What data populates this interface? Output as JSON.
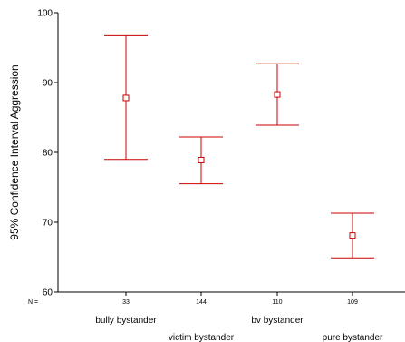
{
  "chart_data": {
    "type": "errorbar",
    "ylabel": "95% Confidence Interval Aggression",
    "ylim": [
      60,
      100
    ],
    "yticks": [
      60,
      70,
      80,
      90,
      100
    ],
    "n_label": "N =",
    "categories": [
      "bully bystander",
      "victim bystander",
      "bv bystander",
      "pure bystander"
    ],
    "n_values": [
      "33",
      "144",
      "110",
      "109"
    ],
    "mean": [
      87.8,
      78.9,
      88.3,
      68.1
    ],
    "lower": [
      79.0,
      75.5,
      83.9,
      64.9
    ],
    "upper": [
      96.7,
      82.2,
      92.7,
      71.3
    ],
    "color": "#cc0000",
    "grid": false
  }
}
